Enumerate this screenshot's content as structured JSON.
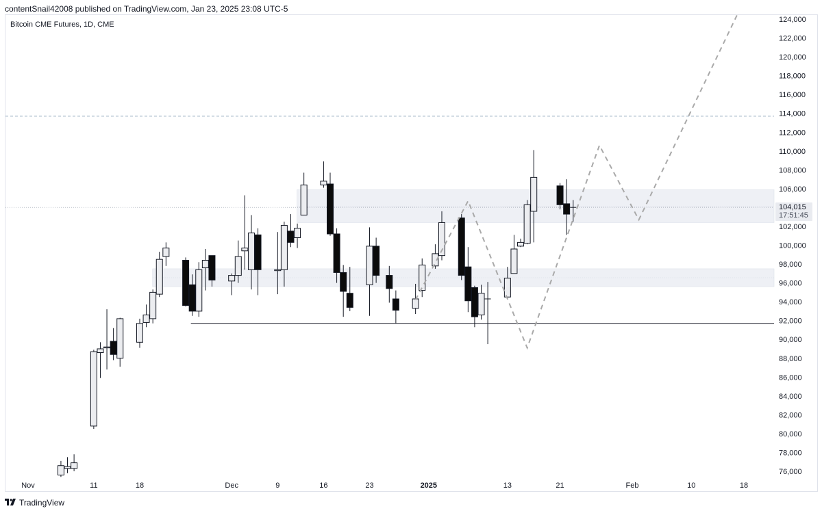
{
  "header": {
    "attribution": "contentSnail42008 published on TradingView.com, Jan 23, 2025 23:08 UTC-5"
  },
  "symbol": {
    "title": "Bitcoin CME Futures, 1D, CME"
  },
  "footer": {
    "brand": "TradingView",
    "logo_icon": "tradingview-logo-icon"
  },
  "last_price": {
    "value": "104,015",
    "countdown": "17:51:45"
  },
  "colors": {
    "up_fill": "#ecedf0",
    "down_fill": "#0b0b0b",
    "wick": "#131722",
    "zone": "#eef0f5",
    "projection": "#a9a9a9",
    "dashed_level": "#9bb0c4"
  },
  "chart_data": {
    "type": "candlestick",
    "title": "",
    "xlabel": "",
    "ylabel": "",
    "ylim": [
      75000,
      125000
    ],
    "y_ticks": [
      "76,000",
      "78,000",
      "80,000",
      "82,000",
      "84,000",
      "86,000",
      "88,000",
      "90,000",
      "92,000",
      "94,000",
      "96,000",
      "98,000",
      "100,000",
      "102,000",
      "104,000",
      "106,000",
      "108,000",
      "110,000",
      "112,000",
      "114,000",
      "116,000",
      "118,000",
      "120,000",
      "122,000",
      "124,000"
    ],
    "x_ticks": [
      {
        "label": "Nov",
        "date": "2024-11-01",
        "bold": false
      },
      {
        "label": "11",
        "date": "2024-11-11",
        "bold": false
      },
      {
        "label": "18",
        "date": "2024-11-18",
        "bold": false
      },
      {
        "label": "Dec",
        "date": "2024-12-02",
        "bold": false
      },
      {
        "label": "9",
        "date": "2024-12-09",
        "bold": false
      },
      {
        "label": "16",
        "date": "2024-12-16",
        "bold": false
      },
      {
        "label": "23",
        "date": "2024-12-23",
        "bold": false
      },
      {
        "label": "2025",
        "date": "2025-01-01",
        "bold": true
      },
      {
        "label": "13",
        "date": "2025-01-13",
        "bold": false
      },
      {
        "label": "21",
        "date": "2025-01-21",
        "bold": false
      },
      {
        "label": "Feb",
        "date": "2025-02-01",
        "bold": false
      },
      {
        "label": "10",
        "date": "2025-02-10",
        "bold": false
      },
      {
        "label": "18",
        "date": "2025-02-18",
        "bold": false
      }
    ],
    "candles": [
      {
        "date": "2024-11-06",
        "open": 75600,
        "high": 77100,
        "low": 75400,
        "close": 76600
      },
      {
        "date": "2024-11-07",
        "open": 76300,
        "high": 77500,
        "low": 75800,
        "close": 76500
      },
      {
        "date": "2024-11-08",
        "open": 76300,
        "high": 77800,
        "low": 76000,
        "close": 76900
      },
      {
        "date": "2024-11-11",
        "open": 80800,
        "high": 88900,
        "low": 80500,
        "close": 88700
      },
      {
        "date": "2024-11-12",
        "open": 88600,
        "high": 89700,
        "low": 85900,
        "close": 89000
      },
      {
        "date": "2024-11-13",
        "open": 89100,
        "high": 93200,
        "low": 86800,
        "close": 89200
      },
      {
        "date": "2024-11-14",
        "open": 89800,
        "high": 91200,
        "low": 87800,
        "close": 88400
      },
      {
        "date": "2024-11-15",
        "open": 88000,
        "high": 92300,
        "low": 87100,
        "close": 92200
      },
      {
        "date": "2024-11-18",
        "open": 89700,
        "high": 92200,
        "low": 89100,
        "close": 91700
      },
      {
        "date": "2024-11-19",
        "open": 91800,
        "high": 93700,
        "low": 91300,
        "close": 92600
      },
      {
        "date": "2024-11-20",
        "open": 92200,
        "high": 95300,
        "low": 91700,
        "close": 95000
      },
      {
        "date": "2024-11-21",
        "open": 94800,
        "high": 99300,
        "low": 94500,
        "close": 98500
      },
      {
        "date": "2024-11-22",
        "open": 98800,
        "high": 100300,
        "low": 97800,
        "close": 99700
      },
      {
        "date": "2024-11-25",
        "open": 98400,
        "high": 98700,
        "low": 93500,
        "close": 93600
      },
      {
        "date": "2024-11-26",
        "open": 95800,
        "high": 96900,
        "low": 92500,
        "close": 93000
      },
      {
        "date": "2024-11-27",
        "open": 93000,
        "high": 98200,
        "low": 92400,
        "close": 97400
      },
      {
        "date": "2024-11-28",
        "open": 97600,
        "high": 99600,
        "low": 95200,
        "close": 98400
      },
      {
        "date": "2024-11-29",
        "open": 98900,
        "high": 98800,
        "low": 95600,
        "close": 96300
      },
      {
        "date": "2024-12-02",
        "open": 96200,
        "high": 97000,
        "low": 94700,
        "close": 96800
      },
      {
        "date": "2024-12-03",
        "open": 96800,
        "high": 100500,
        "low": 96000,
        "close": 98800
      },
      {
        "date": "2024-12-04",
        "open": 99400,
        "high": 105300,
        "low": 97400,
        "close": 99700
      },
      {
        "date": "2024-12-05",
        "open": 97400,
        "high": 103200,
        "low": 95300,
        "close": 101300
      },
      {
        "date": "2024-12-06",
        "open": 101100,
        "high": 101800,
        "low": 94700,
        "close": 97400
      },
      {
        "date": "2024-12-09",
        "open": 97300,
        "high": 101400,
        "low": 94800,
        "close": 97400
      },
      {
        "date": "2024-12-10",
        "open": 97400,
        "high": 102500,
        "low": 95600,
        "close": 102100
      },
      {
        "date": "2024-12-11",
        "open": 101500,
        "high": 103300,
        "low": 99800,
        "close": 100300
      },
      {
        "date": "2024-12-12",
        "open": 100800,
        "high": 102300,
        "low": 99700,
        "close": 101800
      },
      {
        "date": "2024-12-13",
        "open": 103200,
        "high": 107700,
        "low": 103300,
        "close": 106400
      },
      {
        "date": "2024-12-16",
        "open": 106400,
        "high": 108900,
        "low": 106100,
        "close": 106800
      },
      {
        "date": "2024-12-17",
        "open": 106500,
        "high": 107700,
        "low": 101000,
        "close": 101200
      },
      {
        "date": "2024-12-18",
        "open": 101200,
        "high": 101800,
        "low": 96000,
        "close": 97100
      },
      {
        "date": "2024-12-19",
        "open": 97100,
        "high": 97900,
        "low": 92400,
        "close": 95100
      },
      {
        "date": "2024-12-20",
        "open": 94900,
        "high": 97700,
        "low": 93000,
        "close": 93400
      },
      {
        "date": "2024-12-23",
        "open": 95800,
        "high": 101900,
        "low": 92500,
        "close": 99900
      },
      {
        "date": "2024-12-24",
        "open": 99900,
        "high": 100800,
        "low": 96000,
        "close": 96800
      },
      {
        "date": "2024-12-26",
        "open": 96800,
        "high": 97800,
        "low": 93900,
        "close": 95400
      },
      {
        "date": "2024-12-27",
        "open": 94300,
        "high": 95200,
        "low": 91700,
        "close": 93100
      },
      {
        "date": "2024-12-30",
        "open": 93300,
        "high": 95900,
        "low": 92700,
        "close": 94300
      },
      {
        "date": "2024-12-31",
        "open": 95200,
        "high": 98600,
        "low": 94500,
        "close": 97900
      },
      {
        "date": "2025-01-02",
        "open": 97800,
        "high": 100100,
        "low": 97500,
        "close": 99100
      },
      {
        "date": "2025-01-03",
        "open": 98900,
        "high": 103600,
        "low": 98400,
        "close": 102400
      },
      {
        "date": "2025-01-06",
        "open": 102900,
        "high": 103300,
        "low": 96300,
        "close": 96800
      },
      {
        "date": "2025-01-07",
        "open": 97700,
        "high": 99800,
        "low": 92900,
        "close": 94100
      },
      {
        "date": "2025-01-08",
        "open": 95500,
        "high": 95700,
        "low": 91300,
        "close": 92400
      },
      {
        "date": "2025-01-09",
        "open": 92600,
        "high": 95800,
        "low": 92100,
        "close": 94900
      },
      {
        "date": "2025-01-10",
        "open": 94300,
        "high": 96100,
        "low": 89500,
        "close": 94300
      },
      {
        "date": "2025-01-13",
        "open": 94500,
        "high": 97700,
        "low": 94400,
        "close": 96500
      },
      {
        "date": "2025-01-14",
        "open": 97000,
        "high": 101100,
        "low": 97000,
        "close": 99600
      },
      {
        "date": "2025-01-15",
        "open": 99900,
        "high": 100700,
        "low": 99800,
        "close": 100300
      },
      {
        "date": "2025-01-16",
        "open": 100200,
        "high": 104800,
        "low": 100100,
        "close": 104300
      },
      {
        "date": "2025-01-17",
        "open": 103600,
        "high": 110100,
        "low": 100300,
        "close": 107200
      },
      {
        "date": "2025-01-21",
        "open": 106300,
        "high": 106600,
        "low": 103800,
        "close": 104300
      },
      {
        "date": "2025-01-22",
        "open": 104400,
        "high": 107000,
        "low": 101100,
        "close": 103300
      },
      {
        "date": "2025-01-23",
        "open": 104015,
        "high": 104800,
        "low": 102500,
        "close": 104015
      }
    ],
    "annotations": {
      "resistance_zone": {
        "low": 102400,
        "high": 105900,
        "start": "2024-12-13"
      },
      "support_zone": {
        "low": 95600,
        "high": 97500,
        "start": "2024-11-21"
      },
      "support_line": {
        "price": 91700,
        "start": "2024-11-26"
      },
      "target_level": {
        "price": 113700
      },
      "projection_path": [
        {
          "date": "2024-12-30",
          "price": 94200
        },
        {
          "date": "2025-01-07",
          "price": 104700
        },
        {
          "date": "2025-01-16",
          "price": 89100
        },
        {
          "date": "2025-01-27",
          "price": 110600
        },
        {
          "date": "2025-02-02",
          "price": 102700
        },
        {
          "date": "2025-02-17",
          "price": 124500
        }
      ]
    }
  }
}
